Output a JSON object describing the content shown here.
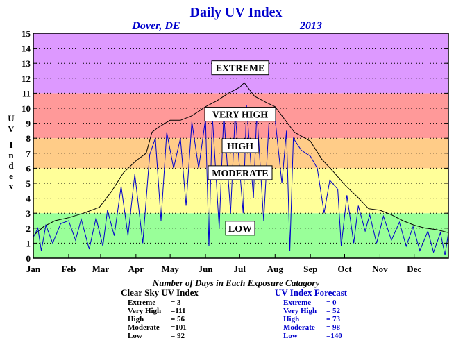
{
  "chart_data": {
    "type": "line",
    "title": "Daily UV Index",
    "location": "Dover, DE",
    "year": "2013",
    "ylabel": "UV Index",
    "ylim": [
      0,
      15
    ],
    "yticks": [
      0,
      1,
      2,
      3,
      4,
      5,
      6,
      7,
      8,
      9,
      10,
      11,
      12,
      13,
      14,
      15
    ],
    "xlim": [
      1,
      365
    ],
    "month_labels": [
      "Jan",
      "Feb",
      "Mar",
      "Apr",
      "May",
      "Jun",
      "Jul",
      "Aug",
      "Sep",
      "Oct",
      "Nov",
      "Dec"
    ],
    "month_start_days": [
      1,
      32,
      60,
      91,
      121,
      152,
      182,
      213,
      244,
      274,
      305,
      335
    ],
    "grid": true,
    "bands": [
      {
        "label": "LOW",
        "min": 0,
        "max": 3,
        "color": "#99ff99",
        "label_value": 2.0
      },
      {
        "label": "MODERATE",
        "min": 3,
        "max": 6,
        "color": "#ffff99",
        "label_value": 5.7
      },
      {
        "label": "HIGH",
        "min": 6,
        "max": 8,
        "color": "#ffcc88",
        "label_value": 7.5
      },
      {
        "label": "VERY HIGH",
        "min": 8,
        "max": 11,
        "color": "#ff9999",
        "label_value": 9.6
      },
      {
        "label": "EXTREME",
        "min": 11,
        "max": 15,
        "color": "#dd99ff",
        "label_value": 12.7
      }
    ],
    "series": [
      {
        "color": "#000000",
        "points": [
          [
            1,
            1.5
          ],
          [
            10,
            2.1
          ],
          [
            20,
            2.5
          ],
          [
            32,
            2.7
          ],
          [
            45,
            3.0
          ],
          [
            59,
            3.4
          ],
          [
            70,
            4.5
          ],
          [
            80,
            5.7
          ],
          [
            91,
            6.5
          ],
          [
            100,
            7.0
          ],
          [
            105,
            8.4
          ],
          [
            110,
            8.7
          ],
          [
            121,
            9.2
          ],
          [
            130,
            9.2
          ],
          [
            140,
            9.5
          ],
          [
            152,
            10.1
          ],
          [
            162,
            10.5
          ],
          [
            172,
            11.0
          ],
          [
            182,
            11.4
          ],
          [
            186,
            11.7
          ],
          [
            195,
            10.8
          ],
          [
            205,
            10.4
          ],
          [
            213,
            10.1
          ],
          [
            222,
            9.2
          ],
          [
            230,
            8.4
          ],
          [
            244,
            7.8
          ],
          [
            254,
            6.6
          ],
          [
            265,
            5.7
          ],
          [
            274,
            4.9
          ],
          [
            285,
            4.1
          ],
          [
            295,
            3.3
          ],
          [
            305,
            3.2
          ],
          [
            315,
            2.9
          ],
          [
            325,
            2.5
          ],
          [
            335,
            2.2
          ],
          [
            345,
            2.0
          ],
          [
            355,
            1.9
          ],
          [
            365,
            1.7
          ]
        ]
      },
      {
        "color": "#0000cc",
        "points": [
          [
            1,
            1.4
          ],
          [
            5,
            2.0
          ],
          [
            8,
            0.5
          ],
          [
            12,
            2.2
          ],
          [
            18,
            1.0
          ],
          [
            25,
            2.3
          ],
          [
            32,
            2.5
          ],
          [
            38,
            1.2
          ],
          [
            43,
            2.6
          ],
          [
            50,
            0.6
          ],
          [
            56,
            2.7
          ],
          [
            62,
            0.8
          ],
          [
            66,
            3.2
          ],
          [
            72,
            1.5
          ],
          [
            78,
            4.8
          ],
          [
            84,
            1.5
          ],
          [
            90,
            5.6
          ],
          [
            97,
            1.0
          ],
          [
            103,
            6.9
          ],
          [
            108,
            8.0
          ],
          [
            113,
            2.5
          ],
          [
            118,
            8.4
          ],
          [
            124,
            6.0
          ],
          [
            130,
            8.0
          ],
          [
            135,
            3.5
          ],
          [
            140,
            9.1
          ],
          [
            146,
            6.0
          ],
          [
            152,
            9.3
          ],
          [
            155,
            0.8
          ],
          [
            158,
            9.5
          ],
          [
            164,
            2.0
          ],
          [
            168,
            9.6
          ],
          [
            174,
            3.0
          ],
          [
            178,
            9.7
          ],
          [
            185,
            3.0
          ],
          [
            188,
            10.2
          ],
          [
            194,
            4.0
          ],
          [
            197,
            9.8
          ],
          [
            203,
            2.5
          ],
          [
            208,
            9.6
          ],
          [
            213,
            9.3
          ],
          [
            219,
            5.0
          ],
          [
            223,
            8.5
          ],
          [
            226,
            0.5
          ],
          [
            229,
            8.0
          ],
          [
            236,
            7.2
          ],
          [
            244,
            6.8
          ],
          [
            250,
            6.0
          ],
          [
            256,
            3.0
          ],
          [
            261,
            5.2
          ],
          [
            268,
            4.6
          ],
          [
            271,
            0.8
          ],
          [
            276,
            4.2
          ],
          [
            282,
            1.0
          ],
          [
            286,
            3.5
          ],
          [
            292,
            1.8
          ],
          [
            296,
            2.9
          ],
          [
            302,
            1.0
          ],
          [
            308,
            2.8
          ],
          [
            315,
            1.2
          ],
          [
            322,
            2.4
          ],
          [
            328,
            0.8
          ],
          [
            334,
            2.1
          ],
          [
            340,
            0.5
          ],
          [
            347,
            1.8
          ],
          [
            352,
            0.4
          ],
          [
            358,
            1.7
          ],
          [
            362,
            0.2
          ],
          [
            365,
            1.7
          ]
        ]
      }
    ]
  },
  "caption": "Number of Days in Each Exposure Catagory",
  "clear_sky": {
    "heading": "Clear Sky UV Index",
    "color": "#000000",
    "rows": [
      {
        "label": "Extreme",
        "value": "=    3"
      },
      {
        "label": "Very High",
        "value": "=111"
      },
      {
        "label": "High",
        "value": "=   56"
      },
      {
        "label": "Moderate",
        "value": "=101"
      },
      {
        "label": "Low",
        "value": "=   92"
      }
    ]
  },
  "forecast": {
    "heading": "UV Index Forecast",
    "color": "#0000cc",
    "rows": [
      {
        "label": "Extreme",
        "value": "=    0"
      },
      {
        "label": "Very High",
        "value": "=   52"
      },
      {
        "label": "High",
        "value": "=   73"
      },
      {
        "label": "Moderate",
        "value": "=   98"
      },
      {
        "label": "Low",
        "value": "=140"
      }
    ]
  }
}
